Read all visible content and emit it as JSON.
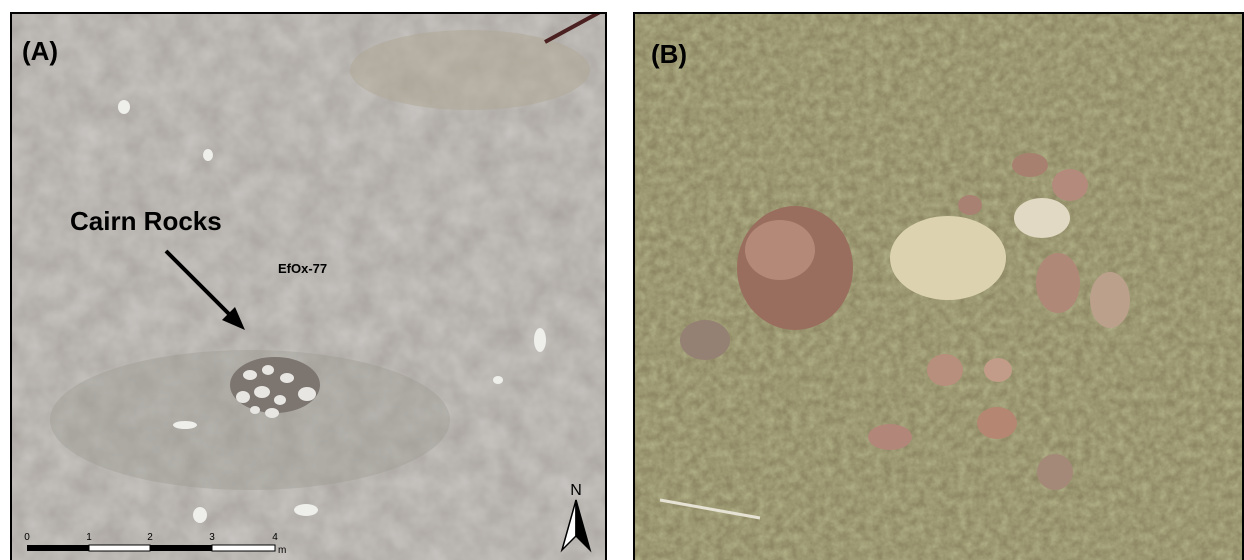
{
  "panels": [
    {
      "label": "(A)",
      "annotation": "Cairn Rocks",
      "site": "EfOx-77",
      "north": "N",
      "scale": {
        "labels": [
          "0",
          "1",
          "2",
          "3",
          "4"
        ],
        "unit": "m"
      }
    },
    {
      "label": "(B)"
    }
  ]
}
